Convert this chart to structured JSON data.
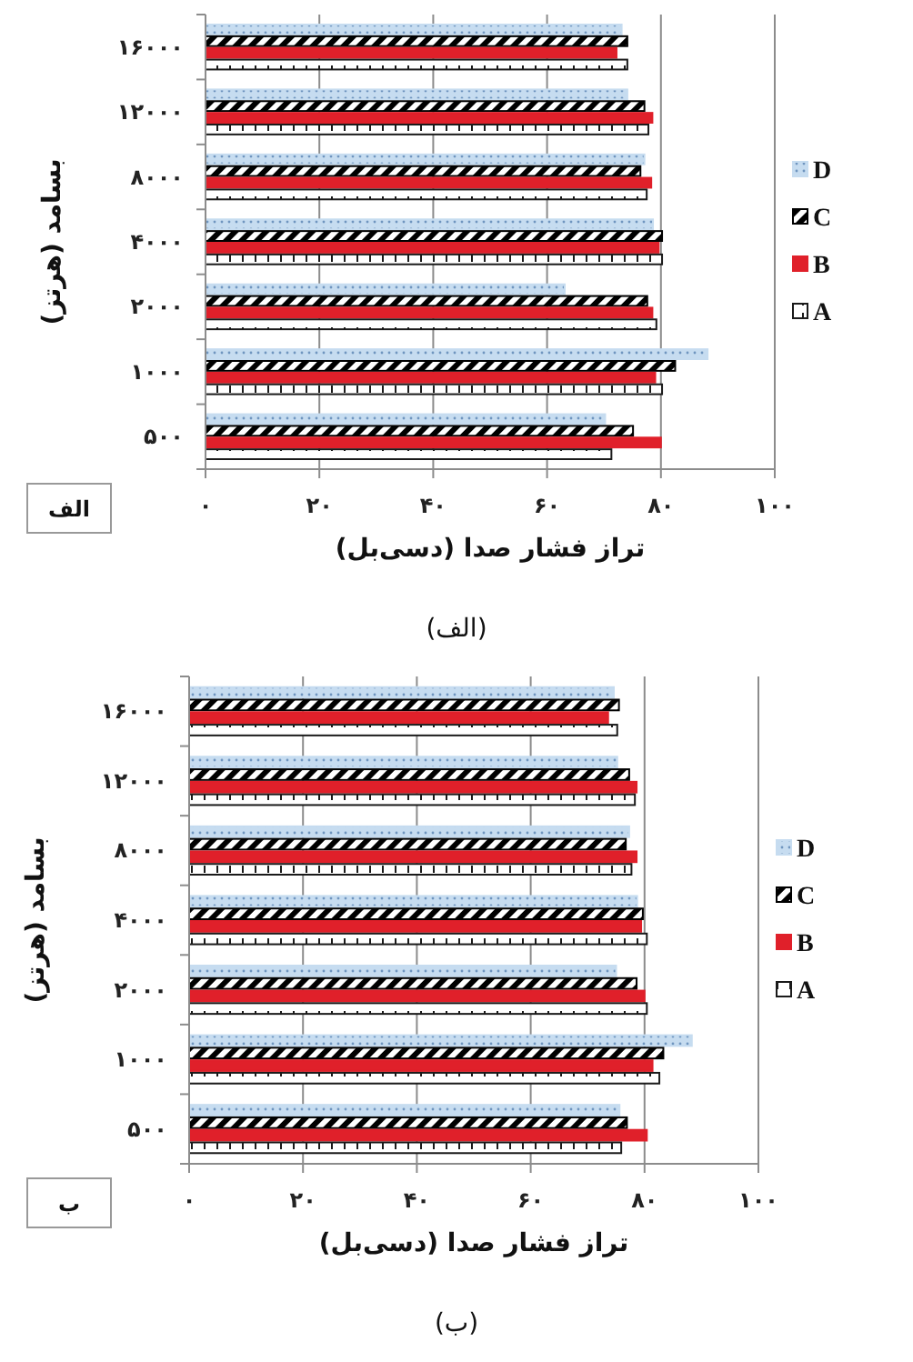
{
  "chart_data": [
    {
      "type": "bar",
      "orientation": "horizontal",
      "categories": [
        "۱۶۰۰۰",
        "۱۲۰۰۰",
        "۸۰۰۰",
        "۴۰۰۰",
        "۲۰۰۰",
        "۱۰۰۰",
        "۵۰۰"
      ],
      "series": [
        {
          "name": "D",
          "color": "#c6dcf0",
          "values": [
            73.1,
            74.1,
            77.1,
            78.6,
            63.1,
            88.2,
            70.2
          ]
        },
        {
          "name": "C",
          "color": "#000000",
          "values": [
            74.1,
            77.1,
            76.4,
            80.2,
            77.6,
            82.5,
            75.1
          ]
        },
        {
          "name": "B",
          "color": "#e0202a",
          "values": [
            72.2,
            78.5,
            78.3,
            79.6,
            78.5,
            79.0,
            80.0
          ]
        },
        {
          "name": "A",
          "color": "#1a1a1a",
          "values": [
            74.1,
            77.8,
            77.5,
            80.2,
            79.2,
            80.2,
            71.3
          ]
        }
      ],
      "xlim": [
        0,
        100
      ],
      "xticks": [
        {
          "value": 0,
          "label": "۰"
        },
        {
          "value": 20,
          "label": "۲۰"
        },
        {
          "value": 40,
          "label": "۴۰"
        },
        {
          "value": 60,
          "label": "۶۰"
        },
        {
          "value": 80,
          "label": "۸۰"
        },
        {
          "value": 100,
          "label": "۱۰۰"
        }
      ],
      "xlabel": "تراز فشار صدا (دسی‌بل)",
      "ylabel": "بسامد (هرتز)",
      "annotations": [
        "الف",
        "(الف)"
      ],
      "grid": "x",
      "legend": "right"
    },
    {
      "type": "bar",
      "orientation": "horizontal",
      "categories": [
        "۱۶۰۰۰",
        "۱۲۰۰۰",
        "۸۰۰۰",
        "۴۰۰۰",
        "۲۰۰۰",
        "۱۰۰۰",
        "۵۰۰"
      ],
      "series": [
        {
          "name": "D",
          "color": "#c6dcf0",
          "values": [
            74.6,
            75.2,
            77.3,
            78.7,
            75.0,
            88.3,
            75.6
          ]
        },
        {
          "name": "C",
          "color": "#000000",
          "values": [
            75.5,
            77.3,
            76.7,
            79.7,
            78.6,
            83.3,
            76.9
          ]
        },
        {
          "name": "B",
          "color": "#e0202a",
          "values": [
            73.6,
            78.6,
            78.6,
            79.4,
            80.0,
            81.4,
            80.4
          ]
        },
        {
          "name": "A",
          "color": "#1a1a1a",
          "values": [
            75.2,
            78.3,
            77.7,
            80.4,
            80.4,
            82.6,
            75.9
          ]
        }
      ],
      "xlim": [
        0,
        100
      ],
      "xticks": [
        {
          "value": 0,
          "label": "۰"
        },
        {
          "value": 20,
          "label": "۲۰"
        },
        {
          "value": 40,
          "label": "۴۰"
        },
        {
          "value": 60,
          "label": "۶۰"
        },
        {
          "value": 80,
          "label": "۸۰"
        },
        {
          "value": 100,
          "label": "۱۰۰"
        }
      ],
      "xlabel": "تراز فشار صدا (دسی‌بل)",
      "ylabel": "بسامد (هرتز)",
      "annotations": [
        "ب",
        "(ب)"
      ],
      "grid": "x",
      "legend": "right"
    }
  ]
}
